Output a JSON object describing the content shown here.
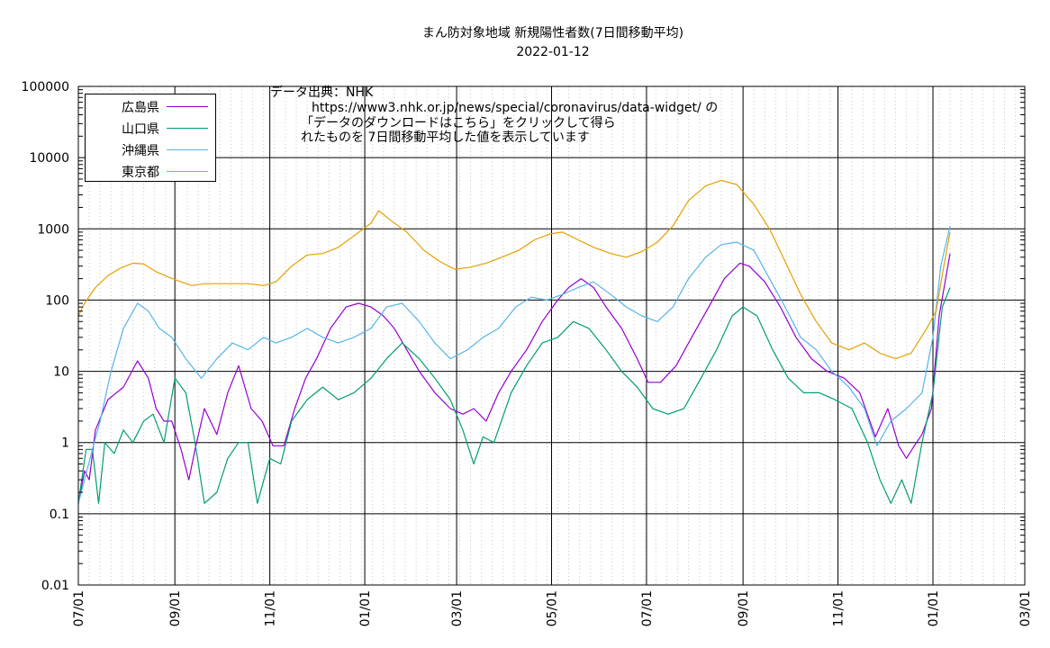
{
  "title": "まん防対象地域 新規陽性者数(7日間移動平均)",
  "subtitle": "2022-01-12",
  "note": {
    "line1": "データ出典：NHK",
    "line2": "https://www3.nhk.or.jp/news/special/coronavirus/data-widget/ の",
    "line3": "「データのダウンロードはこちら」をクリックして得ら",
    "line4": "れたものを 7日間移動平均した値を表示しています"
  },
  "chart_data": {
    "type": "line",
    "title": "まん防対象地域 新規陽性者数(7日間移動平均)",
    "subtitle": "2022-01-12",
    "yscale": "log",
    "ylim": [
      0.01,
      100000
    ],
    "xlim": [
      "2020-07-01",
      "2022-03-01"
    ],
    "ytick_labels": [
      "0.01",
      "0.1",
      "1",
      "10",
      "100",
      "1000",
      "10000",
      "100000"
    ],
    "xtick_labels": [
      "07/01",
      "09/01",
      "11/01",
      "01/01",
      "03/01",
      "05/01",
      "07/01",
      "09/01",
      "11/01",
      "01/01",
      "03/01"
    ],
    "grid": true,
    "legend_position": "top-left",
    "series": [
      {
        "name": "広島県",
        "color": "#9400d3",
        "points": [
          [
            "2020-07-01",
            0.14
          ],
          [
            "2020-07-05",
            0.4
          ],
          [
            "2020-07-08",
            0.3
          ],
          [
            "2020-07-12",
            1.5
          ],
          [
            "2020-07-20",
            4
          ],
          [
            "2020-07-30",
            6
          ],
          [
            "2020-08-08",
            14
          ],
          [
            "2020-08-15",
            8
          ],
          [
            "2020-08-20",
            3
          ],
          [
            "2020-08-25",
            2
          ],
          [
            "2020-08-30",
            2
          ],
          [
            "2020-09-05",
            0.8
          ],
          [
            "2020-09-10",
            0.3
          ],
          [
            "2020-09-14",
            0.8
          ],
          [
            "2020-09-20",
            3
          ],
          [
            "2020-09-28",
            1.3
          ],
          [
            "2020-10-05",
            5
          ],
          [
            "2020-10-12",
            12
          ],
          [
            "2020-10-20",
            3
          ],
          [
            "2020-10-27",
            2
          ],
          [
            "2020-11-03",
            0.9
          ],
          [
            "2020-11-10",
            0.9
          ],
          [
            "2020-11-17",
            3
          ],
          [
            "2020-11-24",
            8
          ],
          [
            "2020-12-01",
            15
          ],
          [
            "2020-12-10",
            40
          ],
          [
            "2020-12-20",
            80
          ],
          [
            "2020-12-28",
            90
          ],
          [
            "2021-01-05",
            80
          ],
          [
            "2021-01-13",
            60
          ],
          [
            "2021-01-20",
            40
          ],
          [
            "2021-01-28",
            20
          ],
          [
            "2021-02-05",
            10
          ],
          [
            "2021-02-15",
            5
          ],
          [
            "2021-02-25",
            3
          ],
          [
            "2021-03-05",
            2.5
          ],
          [
            "2021-03-12",
            3
          ],
          [
            "2021-03-20",
            2
          ],
          [
            "2021-03-28",
            5
          ],
          [
            "2021-04-05",
            10
          ],
          [
            "2021-04-15",
            20
          ],
          [
            "2021-04-25",
            50
          ],
          [
            "2021-05-05",
            100
          ],
          [
            "2021-05-12",
            150
          ],
          [
            "2021-05-20",
            200
          ],
          [
            "2021-05-28",
            150
          ],
          [
            "2021-06-05",
            80
          ],
          [
            "2021-06-15",
            40
          ],
          [
            "2021-06-25",
            15
          ],
          [
            "2021-07-02",
            7
          ],
          [
            "2021-07-10",
            7
          ],
          [
            "2021-07-20",
            12
          ],
          [
            "2021-07-30",
            30
          ],
          [
            "2021-08-10",
            80
          ],
          [
            "2021-08-20",
            200
          ],
          [
            "2021-08-30",
            330
          ],
          [
            "2021-09-05",
            300
          ],
          [
            "2021-09-15",
            180
          ],
          [
            "2021-09-25",
            80
          ],
          [
            "2021-10-05",
            30
          ],
          [
            "2021-10-15",
            15
          ],
          [
            "2021-10-25",
            10
          ],
          [
            "2021-11-05",
            8
          ],
          [
            "2021-11-15",
            5
          ],
          [
            "2021-11-25",
            1.2
          ],
          [
            "2021-12-03",
            3
          ],
          [
            "2021-12-10",
            0.9
          ],
          [
            "2021-12-15",
            0.6
          ],
          [
            "2021-12-20",
            0.9
          ],
          [
            "2021-12-25",
            1.3
          ],
          [
            "2021-12-31",
            3
          ],
          [
            "2022-01-05",
            60
          ],
          [
            "2022-01-12",
            450
          ]
        ]
      },
      {
        "name": "山口県",
        "color": "#009e73",
        "points": [
          [
            "2020-07-01",
            0.14
          ],
          [
            "2020-07-06",
            0.8
          ],
          [
            "2020-07-10",
            0.8
          ],
          [
            "2020-07-14",
            0.14
          ],
          [
            "2020-07-18",
            1
          ],
          [
            "2020-07-24",
            0.7
          ],
          [
            "2020-07-30",
            1.5
          ],
          [
            "2020-08-05",
            1
          ],
          [
            "2020-08-12",
            2
          ],
          [
            "2020-08-18",
            2.5
          ],
          [
            "2020-08-25",
            1
          ],
          [
            "2020-09-01",
            8
          ],
          [
            "2020-09-08",
            5
          ],
          [
            "2020-09-14",
            1
          ],
          [
            "2020-09-20",
            0.14
          ],
          [
            "2020-09-28",
            0.2
          ],
          [
            "2020-10-05",
            0.6
          ],
          [
            "2020-10-12",
            1
          ],
          [
            "2020-10-18",
            1
          ],
          [
            "2020-10-24",
            0.14
          ],
          [
            "2020-11-01",
            0.6
          ],
          [
            "2020-11-08",
            0.5
          ],
          [
            "2020-11-15",
            2
          ],
          [
            "2020-11-25",
            4
          ],
          [
            "2020-12-05",
            6
          ],
          [
            "2020-12-15",
            4
          ],
          [
            "2020-12-25",
            5
          ],
          [
            "2021-01-05",
            8
          ],
          [
            "2021-01-15",
            15
          ],
          [
            "2021-01-25",
            25
          ],
          [
            "2021-02-05",
            15
          ],
          [
            "2021-02-15",
            8
          ],
          [
            "2021-02-25",
            4
          ],
          [
            "2021-03-05",
            1.5
          ],
          [
            "2021-03-12",
            0.5
          ],
          [
            "2021-03-18",
            1.2
          ],
          [
            "2021-03-25",
            1
          ],
          [
            "2021-04-05",
            5
          ],
          [
            "2021-04-15",
            12
          ],
          [
            "2021-04-25",
            25
          ],
          [
            "2021-05-05",
            30
          ],
          [
            "2021-05-15",
            50
          ],
          [
            "2021-05-25",
            40
          ],
          [
            "2021-06-05",
            20
          ],
          [
            "2021-06-15",
            10
          ],
          [
            "2021-06-25",
            6
          ],
          [
            "2021-07-05",
            3
          ],
          [
            "2021-07-15",
            2.5
          ],
          [
            "2021-07-25",
            3
          ],
          [
            "2021-08-05",
            8
          ],
          [
            "2021-08-15",
            20
          ],
          [
            "2021-08-25",
            60
          ],
          [
            "2021-09-01",
            80
          ],
          [
            "2021-09-10",
            60
          ],
          [
            "2021-09-20",
            20
          ],
          [
            "2021-09-30",
            8
          ],
          [
            "2021-10-10",
            5
          ],
          [
            "2021-10-20",
            5
          ],
          [
            "2021-10-30",
            4
          ],
          [
            "2021-11-10",
            3
          ],
          [
            "2021-11-20",
            1
          ],
          [
            "2021-11-28",
            0.3
          ],
          [
            "2021-12-05",
            0.14
          ],
          [
            "2021-12-12",
            0.3
          ],
          [
            "2021-12-18",
            0.14
          ],
          [
            "2021-12-25",
            1
          ],
          [
            "2022-01-01",
            5
          ],
          [
            "2022-01-07",
            80
          ],
          [
            "2022-01-12",
            150
          ]
        ]
      },
      {
        "name": "沖縄県",
        "color": "#56b4e9",
        "points": [
          [
            "2020-07-01",
            0.14
          ],
          [
            "2020-07-05",
            0.3
          ],
          [
            "2020-07-10",
            0.8
          ],
          [
            "2020-07-15",
            2
          ],
          [
            "2020-07-22",
            10
          ],
          [
            "2020-07-30",
            40
          ],
          [
            "2020-08-08",
            90
          ],
          [
            "2020-08-15",
            70
          ],
          [
            "2020-08-22",
            40
          ],
          [
            "2020-08-30",
            30
          ],
          [
            "2020-09-08",
            15
          ],
          [
            "2020-09-18",
            8
          ],
          [
            "2020-09-28",
            15
          ],
          [
            "2020-10-08",
            25
          ],
          [
            "2020-10-18",
            20
          ],
          [
            "2020-10-28",
            30
          ],
          [
            "2020-11-05",
            25
          ],
          [
            "2020-11-15",
            30
          ],
          [
            "2020-11-25",
            40
          ],
          [
            "2020-12-05",
            30
          ],
          [
            "2020-12-15",
            25
          ],
          [
            "2020-12-25",
            30
          ],
          [
            "2021-01-05",
            40
          ],
          [
            "2021-01-15",
            80
          ],
          [
            "2021-01-25",
            90
          ],
          [
            "2021-02-05",
            50
          ],
          [
            "2021-02-15",
            25
          ],
          [
            "2021-02-25",
            15
          ],
          [
            "2021-03-08",
            20
          ],
          [
            "2021-03-18",
            30
          ],
          [
            "2021-03-28",
            40
          ],
          [
            "2021-04-08",
            80
          ],
          [
            "2021-04-18",
            110
          ],
          [
            "2021-04-28",
            100
          ],
          [
            "2021-05-08",
            120
          ],
          [
            "2021-05-18",
            150
          ],
          [
            "2021-05-28",
            180
          ],
          [
            "2021-06-08",
            120
          ],
          [
            "2021-06-18",
            80
          ],
          [
            "2021-06-28",
            60
          ],
          [
            "2021-07-08",
            50
          ],
          [
            "2021-07-18",
            80
          ],
          [
            "2021-07-28",
            200
          ],
          [
            "2021-08-08",
            400
          ],
          [
            "2021-08-18",
            600
          ],
          [
            "2021-08-28",
            650
          ],
          [
            "2021-09-08",
            500
          ],
          [
            "2021-09-18",
            200
          ],
          [
            "2021-09-28",
            80
          ],
          [
            "2021-10-08",
            30
          ],
          [
            "2021-10-18",
            20
          ],
          [
            "2021-10-28",
            10
          ],
          [
            "2021-11-08",
            6
          ],
          [
            "2021-11-18",
            3
          ],
          [
            "2021-11-26",
            0.9
          ],
          [
            "2021-12-05",
            2
          ],
          [
            "2021-12-15",
            3
          ],
          [
            "2021-12-25",
            5
          ],
          [
            "2022-01-01",
            30
          ],
          [
            "2022-01-06",
            300
          ],
          [
            "2022-01-12",
            1100
          ]
        ]
      },
      {
        "name": "東京都",
        "color": "#e69f00",
        "points": [
          [
            "2020-07-01",
            60
          ],
          [
            "2020-07-05",
            90
          ],
          [
            "2020-07-12",
            150
          ],
          [
            "2020-07-20",
            220
          ],
          [
            "2020-07-28",
            280
          ],
          [
            "2020-08-05",
            330
          ],
          [
            "2020-08-12",
            320
          ],
          [
            "2020-08-20",
            250
          ],
          [
            "2020-08-28",
            210
          ],
          [
            "2020-09-05",
            180
          ],
          [
            "2020-09-12",
            160
          ],
          [
            "2020-09-20",
            170
          ],
          [
            "2020-09-28",
            170
          ],
          [
            "2020-10-08",
            170
          ],
          [
            "2020-10-18",
            170
          ],
          [
            "2020-10-28",
            160
          ],
          [
            "2020-11-05",
            180
          ],
          [
            "2020-11-15",
            300
          ],
          [
            "2020-11-25",
            430
          ],
          [
            "2020-12-05",
            450
          ],
          [
            "2020-12-15",
            550
          ],
          [
            "2020-12-25",
            800
          ],
          [
            "2021-01-05",
            1200
          ],
          [
            "2021-01-10",
            1800
          ],
          [
            "2021-01-18",
            1300
          ],
          [
            "2021-01-28",
            900
          ],
          [
            "2021-02-08",
            500
          ],
          [
            "2021-02-18",
            350
          ],
          [
            "2021-02-28",
            270
          ],
          [
            "2021-03-10",
            290
          ],
          [
            "2021-03-20",
            330
          ],
          [
            "2021-03-30",
            400
          ],
          [
            "2021-04-10",
            500
          ],
          [
            "2021-04-20",
            700
          ],
          [
            "2021-04-30",
            850
          ],
          [
            "2021-05-08",
            900
          ],
          [
            "2021-05-18",
            700
          ],
          [
            "2021-05-28",
            550
          ],
          [
            "2021-06-08",
            450
          ],
          [
            "2021-06-18",
            400
          ],
          [
            "2021-06-28",
            480
          ],
          [
            "2021-07-08",
            650
          ],
          [
            "2021-07-18",
            1100
          ],
          [
            "2021-07-28",
            2500
          ],
          [
            "2021-08-08",
            4000
          ],
          [
            "2021-08-18",
            4800
          ],
          [
            "2021-08-28",
            4200
          ],
          [
            "2021-09-08",
            2200
          ],
          [
            "2021-09-18",
            1000
          ],
          [
            "2021-09-28",
            350
          ],
          [
            "2021-10-08",
            120
          ],
          [
            "2021-10-18",
            50
          ],
          [
            "2021-10-28",
            25
          ],
          [
            "2021-11-08",
            20
          ],
          [
            "2021-11-18",
            25
          ],
          [
            "2021-11-28",
            18
          ],
          [
            "2021-12-08",
            15
          ],
          [
            "2021-12-18",
            18
          ],
          [
            "2021-12-28",
            40
          ],
          [
            "2022-01-03",
            70
          ],
          [
            "2022-01-08",
            300
          ],
          [
            "2022-01-12",
            900
          ]
        ]
      }
    ]
  }
}
